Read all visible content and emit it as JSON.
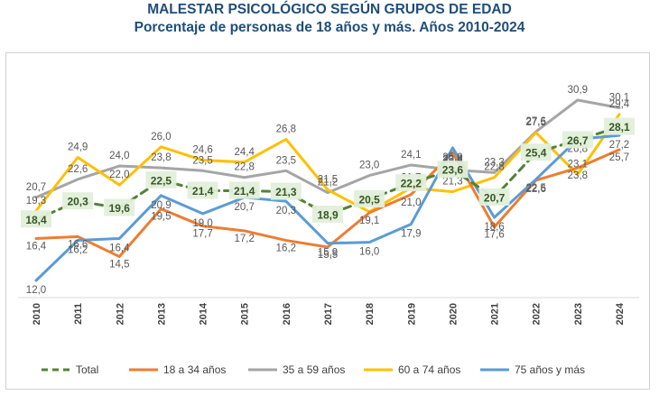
{
  "title": "MALESTAR PSICOLÓGICO SEGÚN GRUPOS DE EDAD",
  "subtitle": "Porcentaje de personas de 18 años y más. Años 2010-2024",
  "chart_data": {
    "type": "line",
    "x": [
      "2010",
      "2011",
      "2012",
      "2013",
      "2014",
      "2015",
      "2016",
      "2017",
      "2018",
      "2019",
      "2020",
      "2021",
      "2022",
      "2023",
      "2024"
    ],
    "ylim": [
      10,
      33
    ],
    "grid": false,
    "legend_position": "bottom",
    "series": [
      {
        "name": "Total",
        "color": "#548235",
        "style": "dashed",
        "values": [
          18.4,
          20.3,
          19.6,
          22.5,
          21.4,
          21.4,
          21.3,
          18.9,
          20.5,
          22.2,
          23.6,
          20.7,
          25.4,
          26.7,
          28.1
        ],
        "labels": [
          "18,4",
          "20,3",
          "19,6",
          "22,5",
          "21,4",
          "21,4",
          "21,3",
          "18,9",
          "20,5",
          "22,2",
          "23,6",
          "20,7",
          "25,4",
          "26,7",
          "28,1"
        ]
      },
      {
        "name": "18 a 34 años",
        "color": "#ed7d31",
        "style": "solid",
        "values": [
          16.4,
          16.6,
          14.5,
          19.5,
          17.7,
          17.2,
          16.2,
          15.5,
          19.1,
          21.0,
          25.4,
          17.6,
          22.5,
          23.8,
          25.7
        ],
        "labels": [
          "16,4",
          "16,6",
          "14,5",
          "19,5",
          "17,7",
          "17,2",
          "16,2",
          "15,5",
          "19,1",
          "21,0",
          "25,4",
          "17,6",
          "22,5",
          "23,8",
          "25,7"
        ]
      },
      {
        "name": "35 a 59 años",
        "color": "#a5a5a5",
        "style": "solid",
        "values": [
          20.7,
          22.6,
          24.0,
          23.8,
          23.5,
          22.8,
          23.5,
          21.2,
          23.0,
          24.1,
          23.6,
          23.3,
          27.6,
          30.9,
          30.1
        ],
        "labels": [
          "20,7",
          "22,6",
          "24,0",
          "23,8",
          "23,5",
          "22,8",
          "23,5",
          "21,2",
          "23,0",
          "24,1",
          "23,6",
          "23,3",
          "27,6",
          "30,9",
          "30,1"
        ]
      },
      {
        "name": "60 a 74 años",
        "color": "#ffc000",
        "style": "solid",
        "values": [
          19.3,
          24.9,
          22.0,
          26.0,
          24.6,
          24.4,
          26.8,
          21.5,
          19.2,
          21.7,
          21.3,
          22.8,
          27.5,
          23.1,
          29.4
        ],
        "labels": [
          "19,3",
          "24,9",
          "22,0",
          "26,0",
          "24,6",
          "24,4",
          "26,8",
          "21,5",
          "19,2",
          "21,7",
          "21,3",
          "22,8",
          "27,5",
          "23,1",
          "29,4"
        ]
      },
      {
        "name": "75 años y más",
        "color": "#5b9bd5",
        "style": "solid",
        "values": [
          12.0,
          16.2,
          16.4,
          20.9,
          19.0,
          20.7,
          20.3,
          15.9,
          16.0,
          17.9,
          25.9,
          18.6,
          22.6,
          26.8,
          27.2
        ],
        "labels": [
          "12,0",
          "16,2",
          "16,4",
          "20,9",
          "19,0",
          "20,7",
          "20,3",
          "15,9",
          "16,0",
          "17,9",
          "25,9",
          "18,6",
          "22,6",
          "26,8",
          "27,2"
        ]
      }
    ]
  }
}
